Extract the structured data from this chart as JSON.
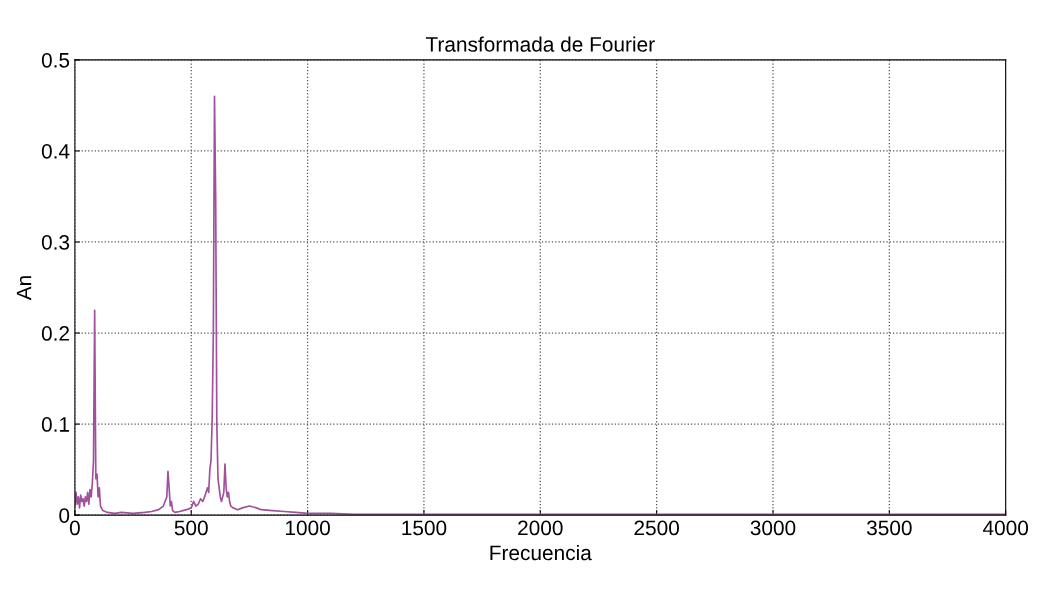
{
  "chart_data": {
    "type": "line",
    "title": "Transformada de Fourier",
    "xlabel": "Frecuencia",
    "ylabel": "An",
    "x": [
      0,
      5,
      10,
      15,
      20,
      25,
      30,
      35,
      40,
      45,
      50,
      55,
      60,
      65,
      70,
      75,
      80,
      85,
      90,
      95,
      100,
      105,
      110,
      120,
      140,
      170,
      200,
      250,
      300,
      330,
      360,
      380,
      395,
      400,
      405,
      410,
      415,
      420,
      430,
      450,
      480,
      500,
      510,
      520,
      530,
      540,
      550,
      560,
      570,
      575,
      580,
      585,
      590,
      595,
      600,
      605,
      610,
      615,
      620,
      625,
      630,
      640,
      645,
      650,
      655,
      660,
      665,
      670,
      680,
      700,
      720,
      750,
      780,
      800,
      850,
      900,
      950,
      1000,
      1100,
      1200,
      1500,
      2000,
      2500,
      3000,
      3500,
      4000
    ],
    "series": [
      {
        "color": "#a0509c",
        "values": [
          0.01,
          0.025,
          0.012,
          0.02,
          0.008,
          0.022,
          0.015,
          0.018,
          0.01,
          0.02,
          0.015,
          0.025,
          0.012,
          0.028,
          0.02,
          0.035,
          0.06,
          0.225,
          0.04,
          0.045,
          0.02,
          0.03,
          0.01,
          0.005,
          0.003,
          0.002,
          0.003,
          0.002,
          0.003,
          0.004,
          0.006,
          0.01,
          0.02,
          0.048,
          0.03,
          0.01,
          0.015,
          0.005,
          0.003,
          0.004,
          0.006,
          0.008,
          0.015,
          0.01,
          0.012,
          0.018,
          0.015,
          0.022,
          0.03,
          0.025,
          0.05,
          0.06,
          0.105,
          0.2,
          0.46,
          0.35,
          0.1,
          0.04,
          0.03,
          0.02,
          0.015,
          0.025,
          0.056,
          0.03,
          0.02,
          0.025,
          0.015,
          0.01,
          0.008,
          0.006,
          0.008,
          0.01,
          0.008,
          0.006,
          0.005,
          0.004,
          0.003,
          0.002,
          0.002,
          0.001,
          0.001,
          0.001,
          0.001,
          0.001,
          0.001,
          0.001
        ]
      }
    ],
    "xlim": [
      0,
      4000
    ],
    "ylim": [
      0,
      0.5
    ],
    "xticks": [
      0,
      500,
      1000,
      1500,
      2000,
      2500,
      3000,
      3500,
      4000
    ],
    "yticks": [
      0,
      0.1,
      0.2,
      0.3,
      0.4,
      0.5
    ],
    "grid": true,
    "line_style": "solid",
    "marker": "none"
  }
}
